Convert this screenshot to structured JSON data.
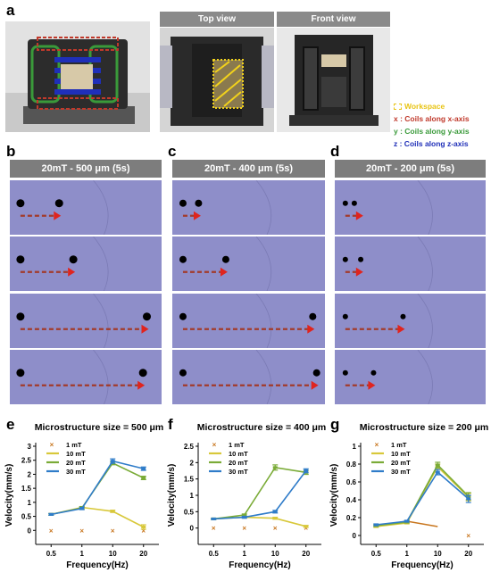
{
  "panel_labels": {
    "a": "a",
    "b": "b",
    "c": "c",
    "d": "d",
    "e": "e",
    "f": "f",
    "g": "g"
  },
  "panel_a": {
    "top_view_title": "Top view",
    "front_view_title": "Front view",
    "legend": {
      "workspace": "Workspace",
      "x": "x : Coils along x-axis",
      "y": "y : Coils along y-axis",
      "z": "z : Coils along z-axis",
      "colors": {
        "workspace": "#f2d21b",
        "x": "#c0392b",
        "y": "#3a9a3a",
        "z": "#1f2fb8"
      }
    }
  },
  "sequences": [
    {
      "title": "20mT - 500 μm (5s)",
      "spacing": [
        0.3,
        0.41,
        0.98,
        0.95
      ]
    },
    {
      "title": "20mT - 400 μm (5s)",
      "spacing": [
        0.12,
        0.33,
        1.0,
        1.03
      ]
    },
    {
      "title": "20mT - 200 μm (5s)",
      "spacing": [
        0.07,
        0.12,
        0.45,
        0.22
      ]
    }
  ],
  "chart_data": [
    {
      "type": "line",
      "title": "Microstructure size = 500 μm",
      "xlabel": "Frequency(Hz)",
      "ylabel": "Velocity(mm/s)",
      "categories": [
        "0.5",
        "1",
        "10",
        "20"
      ],
      "ylim": [
        -0.5,
        3
      ],
      "yticks": [
        "0",
        "0.5",
        "1",
        "1.5",
        "2",
        "2.5",
        "3"
      ],
      "yticks_values": [
        0,
        0.5,
        1,
        1.5,
        2,
        2.5,
        3
      ],
      "legend_position": "top-left",
      "series": [
        {
          "name": "1 mT",
          "marker": "x",
          "color": "#c8761e",
          "values": [
            0,
            0,
            0,
            0
          ]
        },
        {
          "name": "10 mT",
          "color": "#d8c83a",
          "values": [
            0.57,
            0.82,
            0.68,
            0.12
          ],
          "errors": [
            0.03,
            0.03,
            0.04,
            0.08
          ]
        },
        {
          "name": "20 mT",
          "color": "#7aab37",
          "values": [
            0.57,
            0.8,
            2.4,
            1.87
          ],
          "errors": [
            0.03,
            0.05,
            0.06,
            0.06
          ]
        },
        {
          "name": "30 mT",
          "color": "#2f7cc9",
          "values": [
            0.57,
            0.78,
            2.47,
            2.2
          ],
          "errors": [
            0.03,
            0.04,
            0.08,
            0.06
          ]
        }
      ]
    },
    {
      "type": "line",
      "title": "Microstructure size = 400 μm",
      "xlabel": "Frequency(Hz)",
      "ylabel": "Velocity(mm/s)",
      "categories": [
        "0.5",
        "1",
        "10",
        "20"
      ],
      "ylim": [
        -0.5,
        2.5
      ],
      "yticks": [
        "0",
        "0.5",
        "1",
        "1.5",
        "2",
        "2.5"
      ],
      "yticks_values": [
        0,
        0.5,
        1,
        1.5,
        2,
        2.5
      ],
      "legend_position": "top-left",
      "series": [
        {
          "name": "1 mT",
          "marker": "x",
          "color": "#c8761e",
          "values": [
            0,
            0,
            0,
            0
          ]
        },
        {
          "name": "10 mT",
          "color": "#d8c83a",
          "values": [
            0.28,
            0.33,
            0.3,
            0.05
          ],
          "errors": [
            0.02,
            0.02,
            0.03,
            0.03
          ]
        },
        {
          "name": "20 mT",
          "color": "#7aab37",
          "values": [
            0.28,
            0.4,
            1.85,
            1.7
          ],
          "errors": [
            0.02,
            0.03,
            0.08,
            0.06
          ]
        },
        {
          "name": "30 mT",
          "color": "#2f7cc9",
          "values": [
            0.28,
            0.33,
            0.5,
            1.75
          ],
          "errors": [
            0.02,
            0.03,
            0.04,
            0.06
          ]
        }
      ]
    },
    {
      "type": "line",
      "title": "Microstructure size = 200 μm",
      "xlabel": "Frequency(Hz)",
      "ylabel": "Velocity(mm/s)",
      "categories": [
        "0.5",
        "1",
        "10",
        "20"
      ],
      "ylim": [
        -0.1,
        1.0
      ],
      "yticks": [
        "0",
        "0.2",
        "0.4",
        "0.6",
        "0.8",
        "1"
      ],
      "yticks_values": [
        0,
        0.2,
        0.4,
        0.6,
        0.8,
        1.0
      ],
      "legend_position": "top-left",
      "series": [
        {
          "name": "1 mT",
          "marker": "x",
          "color": "#c8761e",
          "values": [
            0.11,
            0.16,
            0.1,
            0
          ],
          "marker_only_last": true
        },
        {
          "name": "10 mT",
          "color": "#d8c83a",
          "values": [
            0.1,
            0.14,
            0.77,
            0.43
          ],
          "errors": [
            0.01,
            0.01,
            0.03,
            0.04
          ]
        },
        {
          "name": "20 mT",
          "color": "#7aab37",
          "values": [
            0.11,
            0.15,
            0.79,
            0.44
          ],
          "errors": [
            0.01,
            0.01,
            0.03,
            0.04
          ]
        },
        {
          "name": "30 mT",
          "color": "#2f7cc9",
          "values": [
            0.12,
            0.16,
            0.71,
            0.41
          ],
          "errors": [
            0.01,
            0.01,
            0.03,
            0.04
          ]
        }
      ]
    }
  ]
}
